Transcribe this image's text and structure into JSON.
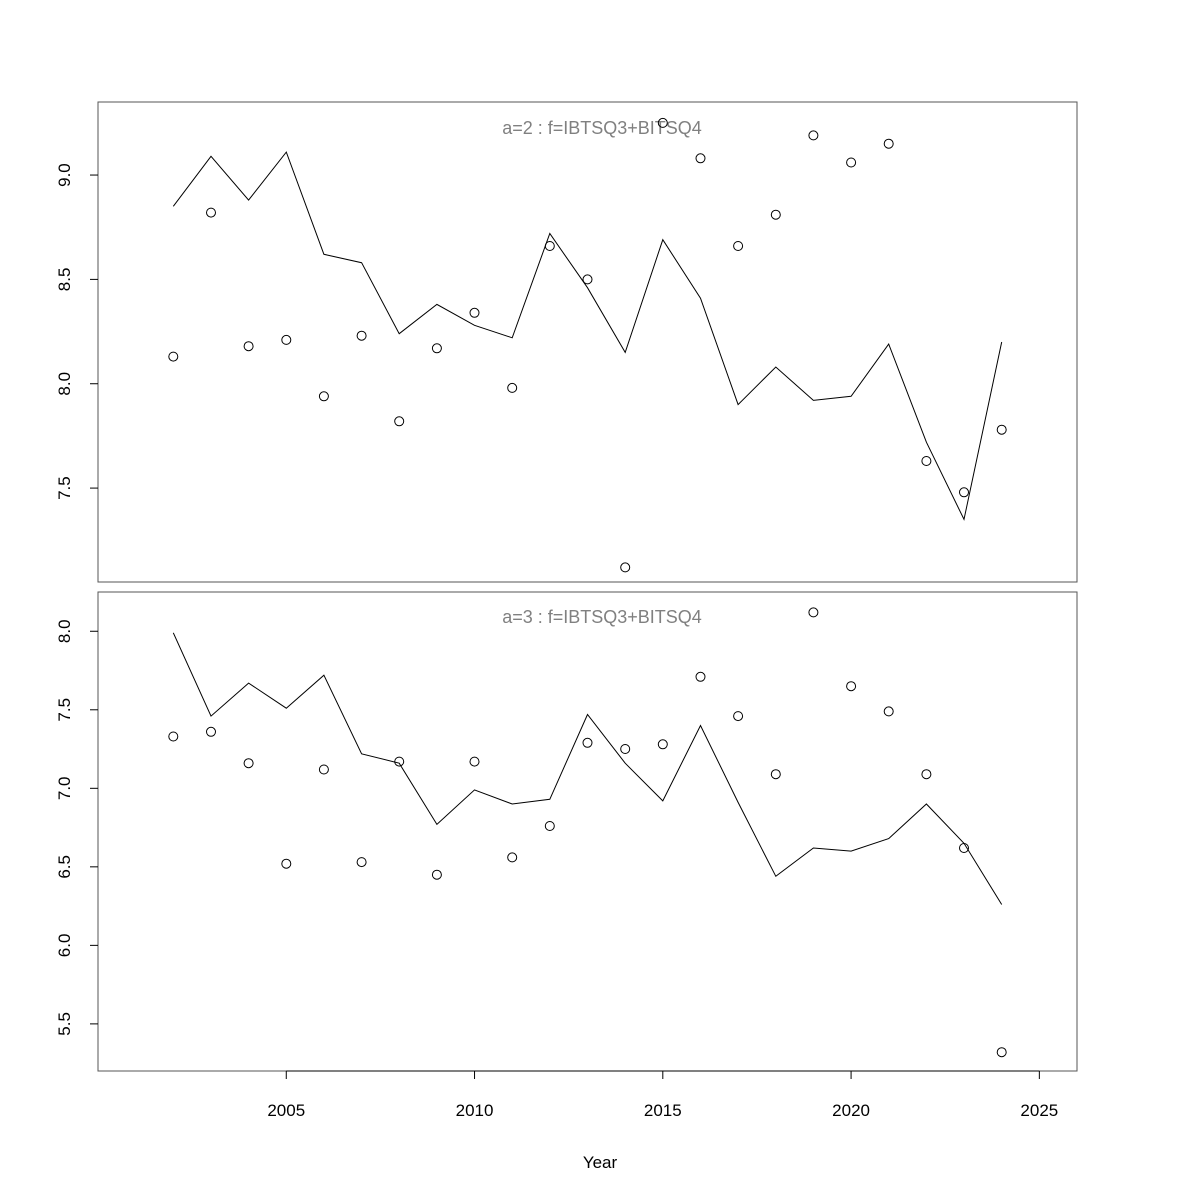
{
  "chart_data": {
    "type": "line",
    "xlabel": "Year",
    "xlim": [
      2000,
      2026
    ],
    "x_ticks": [
      2005,
      2010,
      2015,
      2020,
      2025
    ],
    "x_tick_labels": [
      "2005",
      "2010",
      "2015",
      "2020",
      "2025"
    ],
    "panels": [
      {
        "title": "a=2  :  f=IBTSQ3+BITSQ4",
        "ylim": [
          7.05,
          9.35
        ],
        "y_ticks": [
          7.5,
          8.0,
          8.5,
          9.0
        ],
        "y_tick_labels": [
          "7.5",
          "8.0",
          "8.5",
          "9.0"
        ],
        "x": [
          2002,
          2003,
          2004,
          2005,
          2006,
          2007,
          2008,
          2009,
          2010,
          2011,
          2012,
          2013,
          2014,
          2015,
          2016,
          2017,
          2018,
          2019,
          2020,
          2021,
          2022,
          2023,
          2024
        ],
        "fitted": [
          8.85,
          9.09,
          8.88,
          9.11,
          8.62,
          8.58,
          8.24,
          8.38,
          8.28,
          8.22,
          8.72,
          8.46,
          8.15,
          8.69,
          8.41,
          7.9,
          8.08,
          7.92,
          7.94,
          8.19,
          7.72,
          7.35,
          8.2
        ],
        "observed": [
          8.13,
          8.82,
          8.18,
          8.21,
          7.94,
          8.23,
          7.82,
          8.17,
          8.34,
          7.98,
          8.66,
          8.5,
          7.12,
          9.25,
          9.08,
          8.66,
          8.81,
          9.19,
          9.06,
          9.15,
          7.63,
          7.48,
          7.78
        ]
      },
      {
        "title": "a=3  :  f=IBTSQ3+BITSQ4",
        "ylim": [
          5.2,
          8.25
        ],
        "y_ticks": [
          5.5,
          6.0,
          6.5,
          7.0,
          7.5,
          8.0
        ],
        "y_tick_labels": [
          "5.5",
          "6.0",
          "6.5",
          "7.0",
          "7.5",
          "8.0"
        ],
        "x": [
          2002,
          2003,
          2004,
          2005,
          2006,
          2007,
          2008,
          2009,
          2010,
          2011,
          2012,
          2013,
          2014,
          2015,
          2016,
          2017,
          2018,
          2019,
          2020,
          2021,
          2022,
          2023,
          2024
        ],
        "fitted": [
          7.99,
          7.46,
          7.67,
          7.51,
          7.72,
          7.22,
          7.16,
          6.77,
          6.99,
          6.9,
          6.93,
          7.47,
          7.16,
          6.92,
          7.4,
          6.91,
          6.44,
          6.62,
          6.6,
          6.68,
          6.9,
          6.65,
          6.26
        ],
        "observed": [
          7.33,
          7.36,
          7.16,
          6.52,
          7.12,
          6.53,
          7.17,
          6.45,
          7.17,
          6.56,
          6.76,
          7.29,
          7.25,
          7.28,
          7.71,
          7.46,
          7.09,
          8.12,
          7.65,
          7.49,
          7.09,
          6.62,
          5.32
        ]
      }
    ]
  }
}
